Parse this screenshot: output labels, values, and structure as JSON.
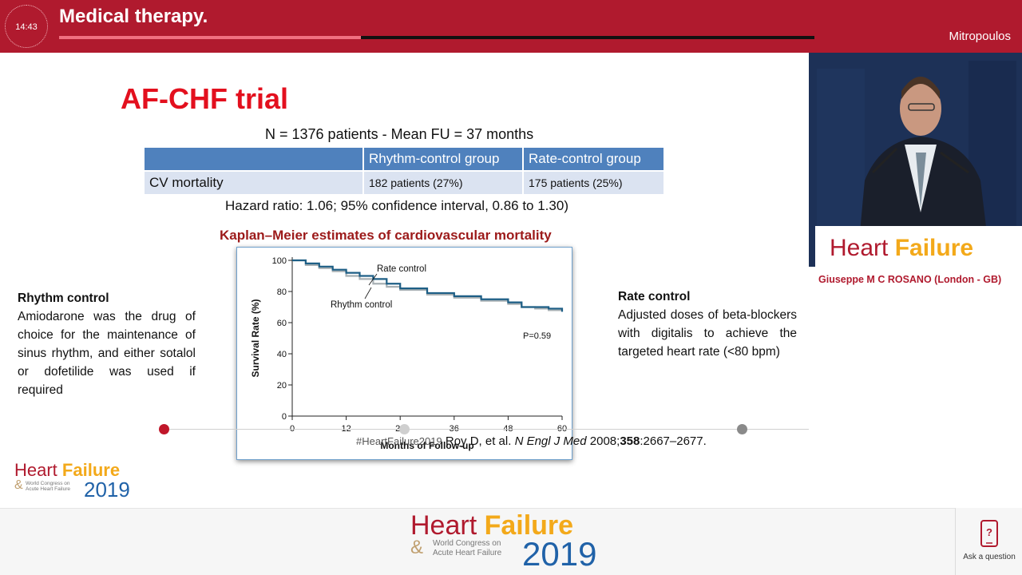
{
  "header": {
    "clock": "14:43",
    "title": "Medical therapy.",
    "speaker": "Mitropoulos",
    "progress": 0.4
  },
  "slide": {
    "title": "AF-CHF trial",
    "subtitle": "N = 1376 patients - Mean FU = 37 months",
    "table": {
      "headers": [
        "",
        "Rhythm-control group",
        "Rate-control group"
      ],
      "rows": [
        [
          "CV mortality",
          "182 patients (27%)",
          "175 patients (25%)"
        ]
      ]
    },
    "hazard_ratio": "Hazard ratio: 1.06; 95% confidence interval, 0.86 to 1.30)",
    "km_title": "Kaplan–Meier estimates of cardiovascular mortality",
    "left_heading": "Rhythm control",
    "left_text": "Amiodarone was the drug of choice for the maintenance of sinus rhythm, and either sotalol or dofetilide was used if required",
    "right_heading": "Rate control",
    "right_text": "Adjusted doses of beta-blockers with digitalis to achieve the targeted heart rate (<80 bpm)",
    "citation_hashtag": "#HeartFailure2019",
    "citation_authors": "Roy D, et al.",
    "citation_journal": "N Engl J Med",
    "citation_year": "2008;",
    "citation_volume": "358",
    "citation_pages": ":2667–2677."
  },
  "chart_data": {
    "type": "line",
    "xlabel": "Months of Follow-up",
    "ylabel": "Survival Rate (%)",
    "xlim": [
      0,
      60
    ],
    "ylim": [
      0,
      100
    ],
    "xticks": [
      0,
      12,
      24,
      36,
      48,
      60
    ],
    "yticks": [
      0,
      20,
      40,
      60,
      80,
      100
    ],
    "annotation": "P=0.59",
    "series": [
      {
        "name": "Rate control",
        "color": "#1e5f86",
        "x": [
          0,
          3,
          6,
          9,
          12,
          15,
          18,
          21,
          24,
          30,
          36,
          42,
          48,
          51,
          54,
          57,
          60
        ],
        "y": [
          100,
          98,
          96,
          94,
          92,
          90,
          88,
          85,
          82,
          79,
          77,
          75,
          73,
          70,
          70,
          69,
          67
        ]
      },
      {
        "name": "Rhythm control",
        "color": "#a8b0b4",
        "x": [
          0,
          3,
          6,
          9,
          12,
          15,
          18,
          21,
          24,
          30,
          36,
          42,
          48,
          51,
          54,
          57,
          60
        ],
        "y": [
          100,
          97,
          95,
          93,
          90,
          88,
          85,
          83,
          81,
          78,
          76,
          74,
          72,
          70,
          69,
          68,
          68
        ]
      }
    ]
  },
  "speaker_panel": {
    "banner_heart": "Heart",
    "banner_failure": "Failure",
    "caption": "Giuseppe M C ROSANO (London - GB)"
  },
  "logo": {
    "heart": "Heart",
    "failure": "Failure",
    "amp": "&",
    "line1": "World Congress on",
    "line2": "Acute Heart Failure",
    "year": "2019"
  },
  "ask": {
    "label": "Ask a question"
  },
  "colors": {
    "brand_red": "#b01a2e",
    "title_red": "#e3101e",
    "gold": "#f3a91a",
    "blue": "#2062a8",
    "table_blue": "#4f81bd"
  }
}
